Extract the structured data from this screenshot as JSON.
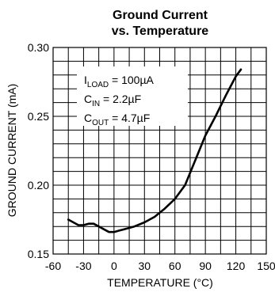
{
  "chart_data": {
    "type": "line",
    "title": [
      "Ground Current",
      "vs. Temperature"
    ],
    "xlabel": "TEMPERATURE (°C)",
    "ylabel": "GROUND CURRENT (mA)",
    "xlim": [
      -60,
      150
    ],
    "ylim": [
      0.15,
      0.3
    ],
    "x_ticks": [
      -60,
      -30,
      0,
      30,
      60,
      90,
      120,
      150
    ],
    "x_tick_labels": [
      "-60",
      "-30",
      "0",
      "30",
      "60",
      "90",
      "120",
      "150"
    ],
    "y_ticks": [
      0.15,
      0.2,
      0.25,
      0.3
    ],
    "y_tick_labels": [
      "0.15",
      "0.20",
      "0.25",
      "0.30"
    ],
    "grid": {
      "x_step": 15,
      "y_step": 0.01
    },
    "annotations": [
      {
        "base": "I",
        "sub": "LOAD",
        "rest": " = 100µA"
      },
      {
        "base": "C",
        "sub": "IN",
        "rest": " = 2.2µF"
      },
      {
        "base": "C",
        "sub": "OUT",
        "rest": " = 4.7µF"
      }
    ],
    "series": [
      {
        "x": [
          -45,
          -40,
          -35,
          -30,
          -25,
          -20,
          -15,
          -10,
          -5,
          0,
          5,
          10,
          20,
          30,
          40,
          50,
          60,
          70,
          80,
          90,
          100,
          110,
          120,
          125
        ],
        "y": [
          0.175,
          0.173,
          0.171,
          0.171,
          0.172,
          0.172,
          0.17,
          0.168,
          0.166,
          0.166,
          0.167,
          0.168,
          0.17,
          0.173,
          0.177,
          0.183,
          0.19,
          0.2,
          0.218,
          0.236,
          0.25,
          0.265,
          0.279,
          0.284
        ]
      }
    ]
  }
}
